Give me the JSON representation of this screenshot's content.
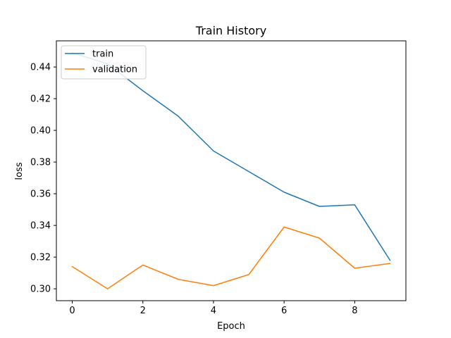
{
  "chart_data": {
    "type": "line",
    "title": "Train History",
    "xlabel": "Epoch",
    "ylabel": "loss",
    "x": [
      0,
      1,
      2,
      3,
      4,
      5,
      6,
      7,
      8,
      9
    ],
    "xlim": [
      -0.45,
      9.45
    ],
    "ylim": [
      0.2925,
      0.4565
    ],
    "xticks": [
      0,
      2,
      4,
      6,
      8
    ],
    "yticks": [
      0.3,
      0.32,
      0.34,
      0.36,
      0.38,
      0.4,
      0.42,
      0.44
    ],
    "ytick_labels": [
      "0.30",
      "0.32",
      "0.34",
      "0.36",
      "0.38",
      "0.40",
      "0.42",
      "0.44"
    ],
    "grid": false,
    "legend_position": "top-left",
    "series": [
      {
        "name": "train",
        "color": "#1f77b4",
        "values": [
          0.449,
          0.442,
          0.425,
          0.409,
          0.387,
          0.374,
          0.361,
          0.352,
          0.353,
          0.318
        ]
      },
      {
        "name": "validation",
        "color": "#ff7f0e",
        "values": [
          0.314,
          0.3,
          0.315,
          0.306,
          0.302,
          0.309,
          0.339,
          0.332,
          0.313,
          0.316
        ]
      }
    ]
  }
}
